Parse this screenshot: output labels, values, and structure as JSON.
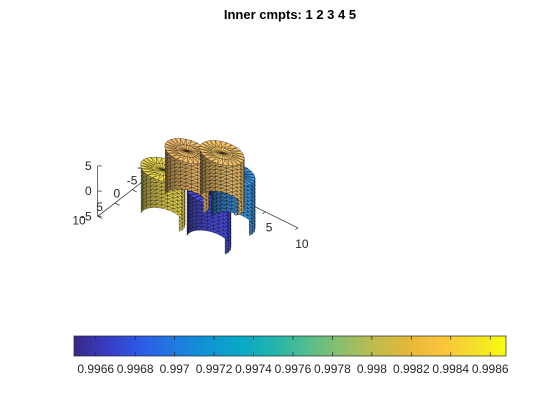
{
  "chart_data": {
    "type": "3d-mesh-cylinders",
    "title": "Inner cmpts: 1  2  3  4  5",
    "axes": {
      "x": {
        "lim": [
          -10,
          10
        ],
        "ticks": [
          -10,
          -5,
          0,
          5,
          10
        ],
        "tick_labels": [
          "-10",
          "-5",
          "0",
          "5",
          "10"
        ]
      },
      "y": {
        "lim": [
          -10,
          10
        ],
        "ticks": [
          -10,
          -5,
          0,
          5,
          10
        ],
        "tick_labels": [
          "-10",
          "-5",
          "0",
          "5",
          "10"
        ]
      },
      "z": {
        "lim": [
          -5,
          5
        ],
        "ticks": [
          -5,
          0,
          5
        ],
        "tick_labels": [
          "-5",
          "0",
          "5"
        ]
      }
    },
    "grid": false,
    "colormap": "parula",
    "colorbar": {
      "orientation": "horizontal",
      "location": "bottom",
      "limits": [
        0.99649,
        0.99868
      ],
      "ticks": [
        0.9966,
        0.9968,
        0.997,
        0.9972,
        0.9974,
        0.9976,
        0.9978,
        0.998,
        0.9982,
        0.9984,
        0.9986
      ],
      "tick_labels": [
        "0.9966",
        "0.9968",
        "0.997",
        "0.9972",
        "0.9974",
        "0.9976",
        "0.9978",
        "0.998",
        "0.9982",
        "0.9984",
        "0.9986"
      ]
    },
    "cylinders": [
      {
        "compartment": 1,
        "center": [
          -3.5,
          3.5
        ],
        "radius": 3,
        "z_range": [
          -5,
          5
        ],
        "value": 0.99855,
        "color": "#e5d353"
      },
      {
        "compartment": 2,
        "center": [
          3.5,
          3.5
        ],
        "radius": 3,
        "z_range": [
          -5,
          5
        ],
        "value": 0.99655,
        "color": "#4a4bdc"
      },
      {
        "compartment": 3,
        "center": [
          -3.5,
          -3.5
        ],
        "radius": 3,
        "z_range": [
          -5,
          5
        ],
        "value": 0.9983,
        "color": "#e9b66a"
      },
      {
        "compartment": 4,
        "center": [
          3.5,
          -3.5
        ],
        "radius": 3,
        "z_range": [
          -5,
          5
        ],
        "value": 0.99705,
        "color": "#3d91da"
      },
      {
        "compartment": 5,
        "center": [
          0,
          -7
        ],
        "radius": 3,
        "z_range": [
          -5,
          5
        ],
        "value": 0.99825,
        "color": "#ebbd6a"
      }
    ]
  }
}
